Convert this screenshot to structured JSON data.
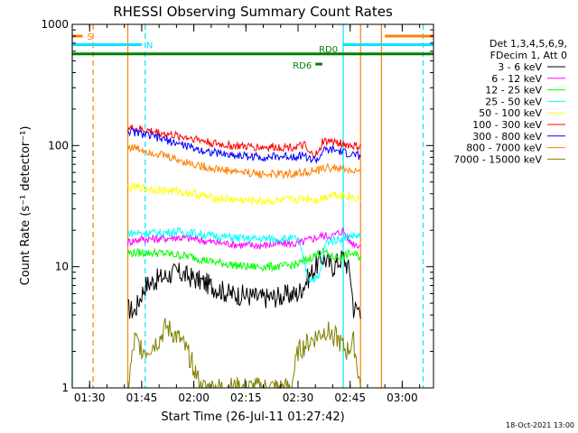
{
  "chart_data": {
    "type": "line",
    "title": "RHESSI Observing Summary Count Rates",
    "xlabel": "Start Time (26-Jul-11 01:27:42)",
    "ylabel": "Count Rate (s⁻¹ detector⁻¹)",
    "xlim": [
      "01:25",
      "03:09"
    ],
    "ylim": [
      1,
      1000
    ],
    "yscale": "log",
    "x_ticks": [
      "01:30",
      "01:45",
      "02:00",
      "02:15",
      "02:30",
      "02:45",
      "03:00"
    ],
    "y_ticks": [
      "1",
      "10",
      "100",
      "1000"
    ],
    "legend_header": [
      "Det 1,3,4,5,6,9,",
      "FDecim 1, Att 0"
    ],
    "series": [
      {
        "name": "3 - 6 keV",
        "color": "#000000",
        "points": [
          [
            "01:41",
            4.5
          ],
          [
            "01:43",
            4.3
          ],
          [
            "01:45",
            6
          ],
          [
            "01:46",
            7
          ],
          [
            "01:50",
            8
          ],
          [
            "01:55",
            9
          ],
          [
            "02:00",
            8
          ],
          [
            "02:05",
            7
          ],
          [
            "02:10",
            6
          ],
          [
            "02:15",
            5.8
          ],
          [
            "02:20",
            5.5
          ],
          [
            "02:25",
            5.7
          ],
          [
            "02:30",
            6
          ],
          [
            "02:34",
            9
          ],
          [
            "02:37",
            12
          ],
          [
            "02:40",
            10
          ],
          [
            "02:43",
            12
          ],
          [
            "02:45",
            9
          ],
          [
            "02:46",
            4.5
          ],
          [
            "02:48",
            4.5
          ]
        ]
      },
      {
        "name": "6 - 12 keV",
        "color": "#ff00ff",
        "points": [
          [
            "01:41",
            16
          ],
          [
            "01:45",
            17
          ],
          [
            "01:50",
            17
          ],
          [
            "01:55",
            17.5
          ],
          [
            "02:00",
            17
          ],
          [
            "02:05",
            16
          ],
          [
            "02:10",
            15.5
          ],
          [
            "02:15",
            15
          ],
          [
            "02:20",
            15
          ],
          [
            "02:25",
            15.5
          ],
          [
            "02:30",
            15.5
          ],
          [
            "02:34",
            17
          ],
          [
            "02:37",
            18
          ],
          [
            "02:40",
            18
          ],
          [
            "02:43",
            20
          ],
          [
            "02:45",
            16
          ],
          [
            "02:48",
            15
          ]
        ]
      },
      {
        "name": "12 - 25 keV",
        "color": "#00ff00",
        "points": [
          [
            "01:41",
            13
          ],
          [
            "01:45",
            13
          ],
          [
            "01:50",
            13
          ],
          [
            "01:55",
            12.5
          ],
          [
            "02:00",
            12
          ],
          [
            "02:05",
            11
          ],
          [
            "02:10",
            10.5
          ],
          [
            "02:15",
            10
          ],
          [
            "02:20",
            10
          ],
          [
            "02:25",
            10
          ],
          [
            "02:30",
            10.5
          ],
          [
            "02:34",
            12
          ],
          [
            "02:37",
            13.5
          ],
          [
            "02:40",
            12
          ],
          [
            "02:43",
            12
          ],
          [
            "02:45",
            13
          ],
          [
            "02:48",
            12
          ]
        ]
      },
      {
        "name": "25 - 50 keV",
        "color": "#00ffff",
        "points": [
          [
            "01:41",
            19
          ],
          [
            "01:45",
            19
          ],
          [
            "01:50",
            19
          ],
          [
            "01:55",
            19.5
          ],
          [
            "02:00",
            19
          ],
          [
            "02:05",
            18
          ],
          [
            "02:10",
            17.5
          ],
          [
            "02:15",
            17
          ],
          [
            "02:20",
            17
          ],
          [
            "02:25",
            17
          ],
          [
            "02:30",
            17
          ],
          [
            "02:33",
            8
          ],
          [
            "02:36",
            8
          ],
          [
            "02:38",
            16
          ],
          [
            "02:42",
            17
          ],
          [
            "02:45",
            18
          ],
          [
            "02:48",
            18
          ]
        ]
      },
      {
        "name": "50 - 100 keV",
        "color": "#ffff00",
        "points": [
          [
            "01:41",
            45
          ],
          [
            "01:45",
            45
          ],
          [
            "01:50",
            43
          ],
          [
            "01:55",
            42
          ],
          [
            "02:00",
            40
          ],
          [
            "02:05",
            37
          ],
          [
            "02:10",
            36
          ],
          [
            "02:15",
            35
          ],
          [
            "02:20",
            35
          ],
          [
            "02:25",
            35
          ],
          [
            "02:30",
            36
          ],
          [
            "02:33",
            37
          ],
          [
            "02:35",
            35
          ],
          [
            "02:38",
            38
          ],
          [
            "02:40",
            40
          ],
          [
            "02:45",
            38
          ],
          [
            "02:48",
            36
          ]
        ]
      },
      {
        "name": "100 - 300 keV",
        "color": "#ff0000",
        "points": [
          [
            "01:41",
            140
          ],
          [
            "01:45",
            135
          ],
          [
            "01:50",
            128
          ],
          [
            "01:55",
            120
          ],
          [
            "02:00",
            115
          ],
          [
            "02:05",
            105
          ],
          [
            "02:10",
            100
          ],
          [
            "02:15",
            98
          ],
          [
            "02:20",
            97
          ],
          [
            "02:25",
            97
          ],
          [
            "02:30",
            98
          ],
          [
            "02:32",
            100
          ],
          [
            "02:33",
            85
          ],
          [
            "02:36",
            85
          ],
          [
            "02:37",
            108
          ],
          [
            "02:40",
            108
          ],
          [
            "02:45",
            100
          ],
          [
            "02:48",
            97
          ]
        ]
      },
      {
        "name": "300 - 800 keV",
        "color": "#0000ff",
        "points": [
          [
            "01:41",
            132
          ],
          [
            "01:45",
            125
          ],
          [
            "01:50",
            115
          ],
          [
            "01:55",
            105
          ],
          [
            "02:00",
            95
          ],
          [
            "02:05",
            88
          ],
          [
            "02:10",
            84
          ],
          [
            "02:15",
            82
          ],
          [
            "02:20",
            80
          ],
          [
            "02:25",
            81
          ],
          [
            "02:30",
            82
          ],
          [
            "02:32",
            84
          ],
          [
            "02:33",
            77
          ],
          [
            "02:36",
            77
          ],
          [
            "02:37",
            90
          ],
          [
            "02:40",
            92
          ],
          [
            "02:45",
            85
          ],
          [
            "02:48",
            82
          ]
        ]
      },
      {
        "name": "800 - 7000 keV",
        "color": "#ff7f00",
        "points": [
          [
            "01:41",
            98
          ],
          [
            "01:45",
            93
          ],
          [
            "01:50",
            85
          ],
          [
            "01:55",
            77
          ],
          [
            "02:00",
            70
          ],
          [
            "02:05",
            65
          ],
          [
            "02:10",
            62
          ],
          [
            "02:15",
            60
          ],
          [
            "02:20",
            58
          ],
          [
            "02:25",
            58
          ],
          [
            "02:30",
            59
          ],
          [
            "02:33",
            61
          ],
          [
            "02:36",
            62
          ],
          [
            "02:38",
            66
          ],
          [
            "02:42",
            65
          ],
          [
            "02:45",
            62
          ],
          [
            "02:48",
            60
          ]
        ]
      },
      {
        "name": "7000 - 15000 keV",
        "color": "#808000",
        "points": [
          [
            "01:41",
            1
          ],
          [
            "01:43",
            2.5
          ],
          [
            "01:46",
            2
          ],
          [
            "01:50",
            2.5
          ],
          [
            "01:52",
            3.2
          ],
          [
            "01:56",
            2.5
          ],
          [
            "01:58",
            2
          ],
          [
            "02:00",
            1.5
          ],
          [
            "02:02",
            1
          ],
          [
            "02:28",
            1
          ],
          [
            "02:30",
            2
          ],
          [
            "02:34",
            2.5
          ],
          [
            "02:38",
            3.0
          ],
          [
            "02:41",
            2.6
          ],
          [
            "02:44",
            2
          ],
          [
            "02:46",
            2.4
          ],
          [
            "02:48",
            1
          ]
        ]
      }
    ],
    "vertical_markers": [
      {
        "time": "01:25",
        "color": "#00e5ff",
        "style": "solid"
      },
      {
        "time": "01:31",
        "color": "#ff7f00",
        "style": "dashed"
      },
      {
        "time": "01:41",
        "color": "#ff7f00",
        "style": "solid"
      },
      {
        "time": "01:46",
        "color": "#00e5ff",
        "style": "dashed"
      },
      {
        "time": "02:43",
        "color": "#00e5ff",
        "style": "solid"
      },
      {
        "time": "02:48",
        "color": "#ff7f00",
        "style": "solid"
      },
      {
        "time": "02:54",
        "color": "#ff7f00",
        "style": "solid"
      },
      {
        "time": "03:06",
        "color": "#00e5ff",
        "style": "dashed"
      }
    ],
    "bars": [
      {
        "label": "S",
        "color": "#ff7f00",
        "y": 800,
        "segments": [
          [
            "01:25",
            "01:28"
          ],
          [
            "02:55",
            "03:09"
          ]
        ]
      },
      {
        "label": "N",
        "color": "#00e5ff",
        "y": 680,
        "segments": [
          [
            "01:25",
            "01:45"
          ],
          [
            "02:43",
            "03:09"
          ]
        ]
      },
      {
        "label": "RD0",
        "color": "#008000",
        "y": 570,
        "segments": [
          [
            "01:25",
            "03:09"
          ]
        ]
      },
      {
        "label": "RD6",
        "color": "#008000",
        "y": 470,
        "segments": [
          [
            "02:35",
            "02:37"
          ]
        ]
      }
    ],
    "grid": false,
    "legend_position": "right"
  },
  "footer_date": "18-Oct-2021 13:00"
}
